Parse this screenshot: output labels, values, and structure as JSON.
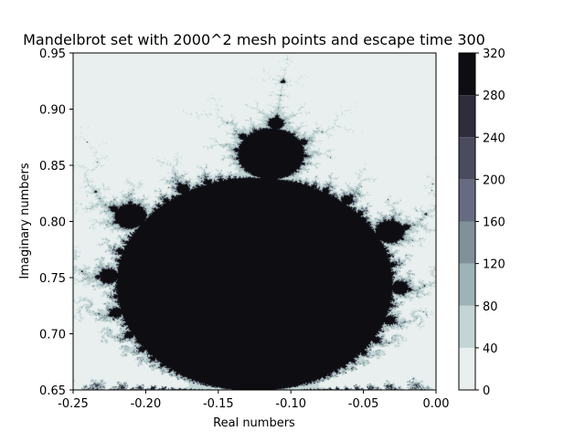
{
  "chart_data": {
    "type": "heatmap",
    "title": "Mandelbrot set with 2000^2 mesh points and escape time 300",
    "xlabel": "Real numbers",
    "ylabel": "Imaginary numbers",
    "xlim": [
      -0.25,
      0.0
    ],
    "ylim": [
      0.65,
      0.95
    ],
    "x_ticks": [
      "-0.25",
      "-0.20",
      "-0.15",
      "-0.10",
      "-0.05",
      "0.00"
    ],
    "y_ticks": [
      "0.65",
      "0.70",
      "0.75",
      "0.80",
      "0.85",
      "0.90",
      "0.95"
    ],
    "escape_time": 300,
    "mesh_points": 2000,
    "colorbar": {
      "levels": [
        0,
        40,
        80,
        120,
        160,
        200,
        240,
        280,
        320
      ],
      "tick_labels": [
        "0",
        "40",
        "80",
        "120",
        "160",
        "200",
        "240",
        "280",
        "320"
      ],
      "colors": [
        "#e8efee",
        "#c3d6d5",
        "#9db3b5",
        "#80919a",
        "#676b82",
        "#4b4b60",
        "#2f2d3b",
        "#0e0d12"
      ],
      "colormap": "bone_r"
    },
    "grid": false,
    "legend": "none"
  }
}
